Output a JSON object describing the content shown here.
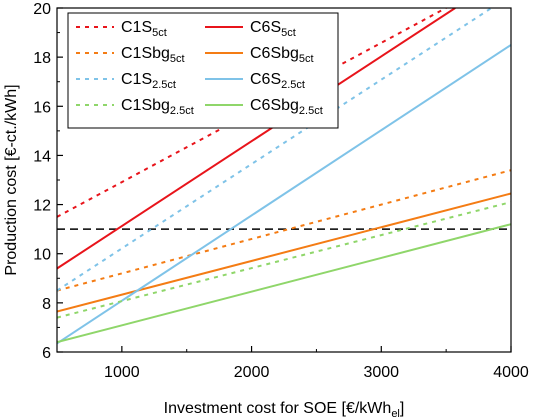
{
  "chart_data": {
    "type": "line",
    "xlabel": "Investment cost for SOE [€/kWh",
    "xlabel_sub": "el",
    "xlabel_end": "]",
    "ylabel": "Production cost [€-ct./kWh]",
    "xlim": [
      500,
      4000
    ],
    "ylim": [
      6,
      20
    ],
    "x_ticks": [
      1000,
      2000,
      3000,
      4000
    ],
    "y_ticks": [
      6,
      8,
      10,
      12,
      14,
      16,
      18,
      20
    ],
    "grid": false,
    "legend_position": "top-left",
    "reference_line": {
      "y": 11,
      "style": "dashed",
      "color": "#000000"
    },
    "series": [
      {
        "name": "C1S",
        "sub": "5ct",
        "color": "#e8141b",
        "dash": "dotted",
        "points": [
          [
            500,
            11.5
          ],
          [
            3500,
            20
          ]
        ]
      },
      {
        "name": "C6S",
        "sub": "5ct",
        "color": "#e8141b",
        "dash": "solid",
        "points": [
          [
            500,
            9.4
          ],
          [
            3570,
            20
          ]
        ]
      },
      {
        "name": "C1Sbg",
        "sub": "5ct",
        "color": "#f47c14",
        "dash": "dotted",
        "points": [
          [
            500,
            8.5
          ],
          [
            4000,
            13.4
          ]
        ]
      },
      {
        "name": "C6Sbg",
        "sub": "5ct",
        "color": "#f47c14",
        "dash": "solid",
        "points": [
          [
            500,
            7.65
          ],
          [
            4000,
            12.45
          ]
        ]
      },
      {
        "name": "C1S",
        "sub": "2.5ct",
        "color": "#7fc3e8",
        "dash": "dotted",
        "points": [
          [
            500,
            8.5
          ],
          [
            3850,
            20
          ]
        ]
      },
      {
        "name": "C6S",
        "sub": "2.5ct",
        "color": "#7fc3e8",
        "dash": "solid",
        "points": [
          [
            500,
            6.35
          ],
          [
            4000,
            18.5
          ]
        ]
      },
      {
        "name": "C1Sbg",
        "sub": "2.5ct",
        "color": "#8fd66a",
        "dash": "dotted",
        "points": [
          [
            500,
            7.4
          ],
          [
            4000,
            12.1
          ]
        ]
      },
      {
        "name": "C6Sbg",
        "sub": "2.5ct",
        "color": "#8fd66a",
        "dash": "solid",
        "points": [
          [
            500,
            6.4
          ],
          [
            4000,
            11.2
          ]
        ]
      }
    ]
  }
}
